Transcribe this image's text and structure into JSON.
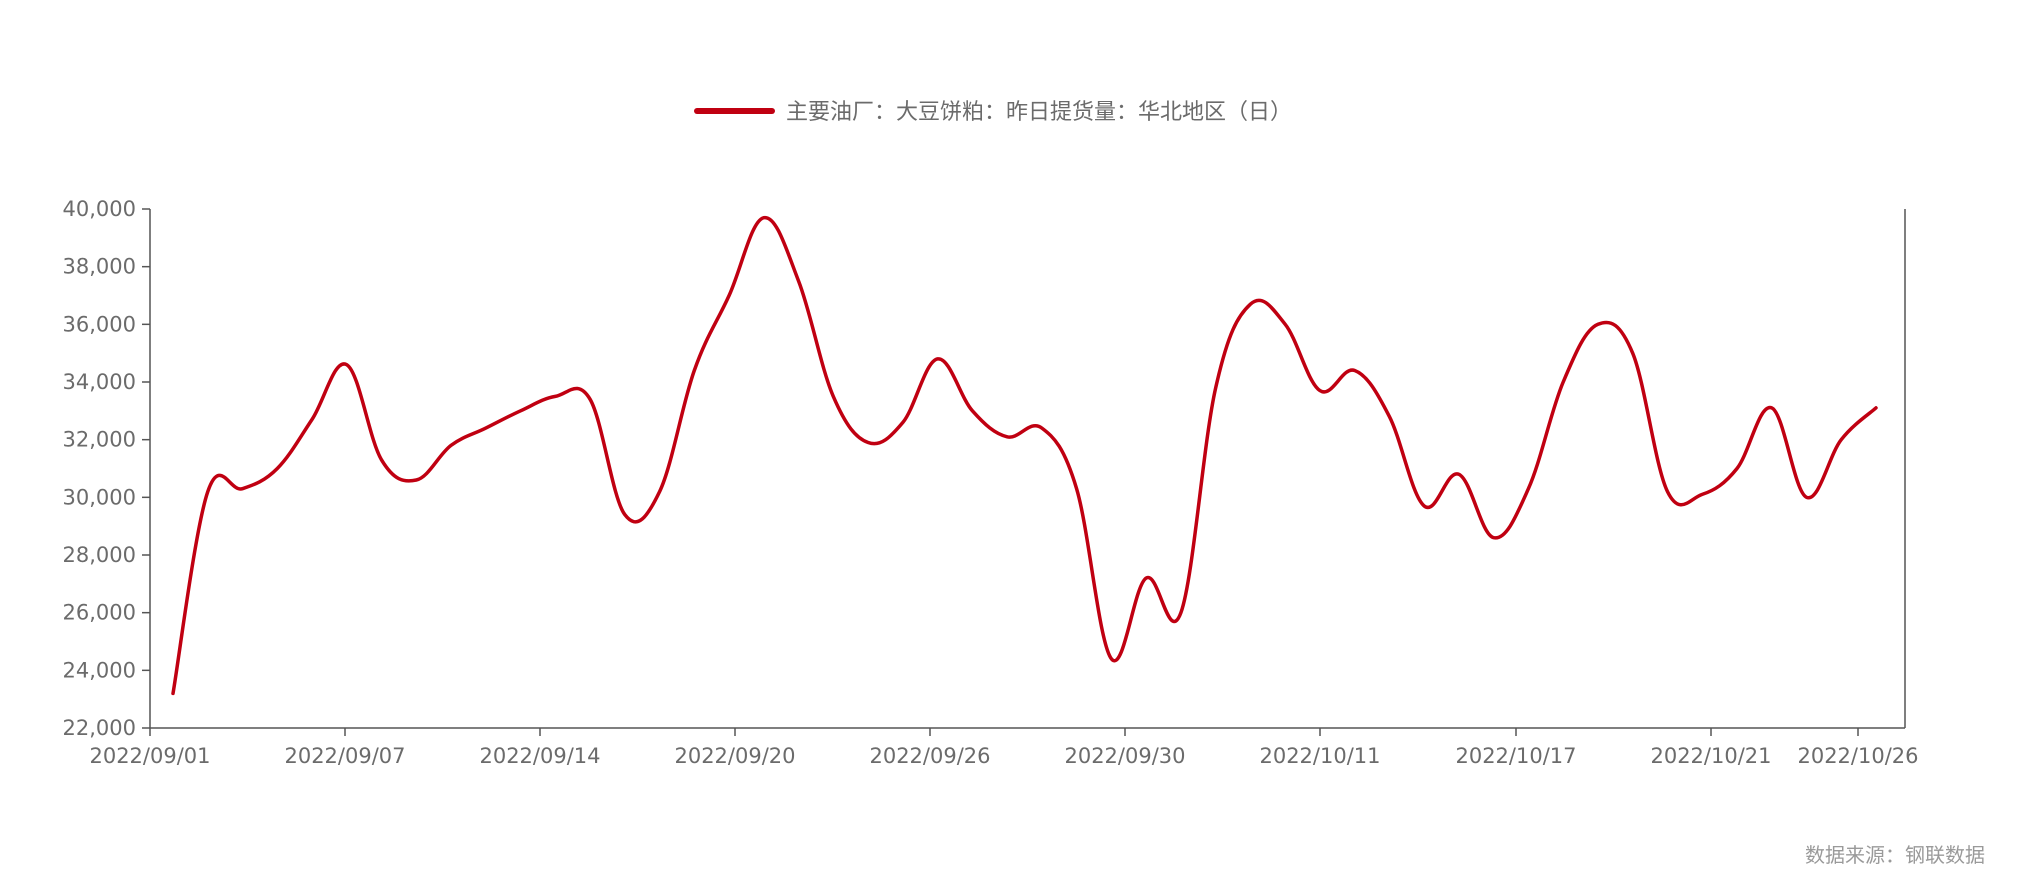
{
  "legend": {
    "label": "主要油厂：大豆饼粕：昨日提货量：华北地区（日）"
  },
  "source": {
    "text": "数据来源：钢联数据"
  },
  "colors": {
    "series": "#c00011",
    "axis": "#555555",
    "text": "#6b6b6b",
    "source": "#9a9a9a"
  },
  "chart_data": {
    "type": "line",
    "title": "",
    "xlabel": "",
    "ylabel": "",
    "ylim": [
      22000,
      40000
    ],
    "yticks": [
      22000,
      24000,
      26000,
      28000,
      30000,
      32000,
      34000,
      36000,
      38000,
      40000
    ],
    "ytick_labels": [
      "22,000",
      "24,000",
      "26,000",
      "28,000",
      "30,000",
      "32,000",
      "34,000",
      "36,000",
      "38,000",
      "40,000"
    ],
    "xticks": [
      "2022/09/01",
      "2022/09/07",
      "2022/09/14",
      "2022/09/20",
      "2022/09/26",
      "2022/09/30",
      "2022/10/11",
      "2022/10/17",
      "2022/10/21",
      "2022/10/26"
    ],
    "grid": false,
    "legend_position": "top-center",
    "series": [
      {
        "name": "主要油厂：大豆饼粕：昨日提货量：华北地区（日）",
        "x": [
          "2022/09/01",
          "2022/09/02",
          "2022/09/03",
          "2022/09/04",
          "2022/09/05",
          "2022/09/06",
          "2022/09/07",
          "2022/09/08",
          "2022/09/09",
          "2022/09/10",
          "2022/09/11",
          "2022/09/12",
          "2022/09/13",
          "2022/09/14",
          "2022/09/15",
          "2022/09/16",
          "2022/09/17",
          "2022/09/18",
          "2022/09/19",
          "2022/09/20",
          "2022/09/21",
          "2022/09/22",
          "2022/09/23",
          "2022/09/24",
          "2022/09/25",
          "2022/09/26",
          "2022/09/27",
          "2022/09/28",
          "2022/09/29",
          "2022/09/30",
          "2022/10/01",
          "2022/10/02",
          "2022/10/08",
          "2022/10/09",
          "2022/10/10",
          "2022/10/11",
          "2022/10/12",
          "2022/10/13",
          "2022/10/14",
          "2022/10/15",
          "2022/10/16",
          "2022/10/17",
          "2022/10/18",
          "2022/10/19",
          "2022/10/20",
          "2022/10/21",
          "2022/10/22",
          "2022/10/23",
          "2022/10/24",
          "2022/10/25"
        ],
        "values": [
          23200,
          30200,
          30300,
          31000,
          32700,
          34600,
          31300,
          30600,
          31800,
          32400,
          33000,
          33500,
          33400,
          29400,
          30200,
          34400,
          37000,
          39700,
          37500,
          33500,
          31900,
          32600,
          34800,
          33000,
          32100,
          32400,
          30300,
          24400,
          27200,
          26000,
          33800,
          36700,
          36000,
          33700,
          34400,
          32800,
          29700,
          30800,
          28600,
          30300,
          34000,
          36000,
          35000,
          30200,
          30100,
          31000,
          33100,
          30000,
          32000,
          33100
        ]
      }
    ]
  }
}
